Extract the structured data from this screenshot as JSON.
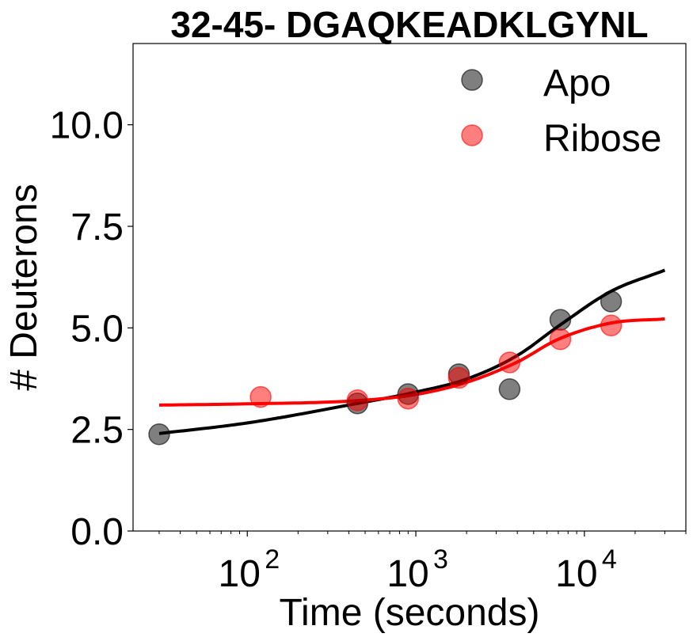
{
  "chart_data": {
    "type": "scatter",
    "title": "32-45- DGAQKEADKLGYNL",
    "xlabel": "Time (seconds)",
    "ylabel": "# Deuterons",
    "x_scale": "log",
    "xlim": [
      21,
      40000
    ],
    "ylim": [
      0,
      12.0
    ],
    "x_ticks": [
      {
        "value": 100,
        "base": "10",
        "exp": "2"
      },
      {
        "value": 1000,
        "base": "10",
        "exp": "3"
      },
      {
        "value": 10000,
        "base": "10",
        "exp": "4"
      }
    ],
    "y_ticks": [
      {
        "value": 0,
        "label": "0.0"
      },
      {
        "value": 2.5,
        "label": "2.5"
      },
      {
        "value": 5,
        "label": "5.0"
      },
      {
        "value": 7.5,
        "label": "7.5"
      },
      {
        "value": 10,
        "label": "10.0"
      }
    ],
    "grid": false,
    "legend_position": "top-right",
    "series": [
      {
        "name": "Apo",
        "color": "#000000",
        "opacity": 0.5,
        "points": [
          {
            "x": 30,
            "y": 2.38
          },
          {
            "x": 450,
            "y": 3.14
          },
          {
            "x": 900,
            "y": 3.37
          },
          {
            "x": 1800,
            "y": 3.86
          },
          {
            "x": 3600,
            "y": 3.49
          },
          {
            "x": 7200,
            "y": 5.2
          },
          {
            "x": 14400,
            "y": 5.65
          }
        ],
        "fit": {
          "color": "#000000",
          "x_from": 30,
          "x_to": 30000,
          "points": [
            [
              30,
              2.4
            ],
            [
              100,
              2.66
            ],
            [
              450,
              3.14
            ],
            [
              1000,
              3.42
            ],
            [
              2000,
              3.74
            ],
            [
              4000,
              4.32
            ],
            [
              7000,
              5.04
            ],
            [
              14400,
              5.9
            ],
            [
              30000,
              6.42
            ]
          ]
        }
      },
      {
        "name": "Ribose",
        "color": "#ff0000",
        "opacity": 0.5,
        "points": [
          {
            "x": 120,
            "y": 3.3
          },
          {
            "x": 450,
            "y": 3.22
          },
          {
            "x": 900,
            "y": 3.26
          },
          {
            "x": 1800,
            "y": 3.77
          },
          {
            "x": 3600,
            "y": 4.15
          },
          {
            "x": 7200,
            "y": 4.72
          },
          {
            "x": 14400,
            "y": 5.06
          }
        ],
        "fit": {
          "color": "#ff0000",
          "x_from": 30,
          "x_to": 30000,
          "points": [
            [
              30,
              3.1
            ],
            [
              100,
              3.13
            ],
            [
              450,
              3.21
            ],
            [
              1000,
              3.36
            ],
            [
              2000,
              3.66
            ],
            [
              4000,
              4.16
            ],
            [
              7000,
              4.72
            ],
            [
              14400,
              5.12
            ],
            [
              30000,
              5.22
            ]
          ]
        }
      }
    ]
  }
}
